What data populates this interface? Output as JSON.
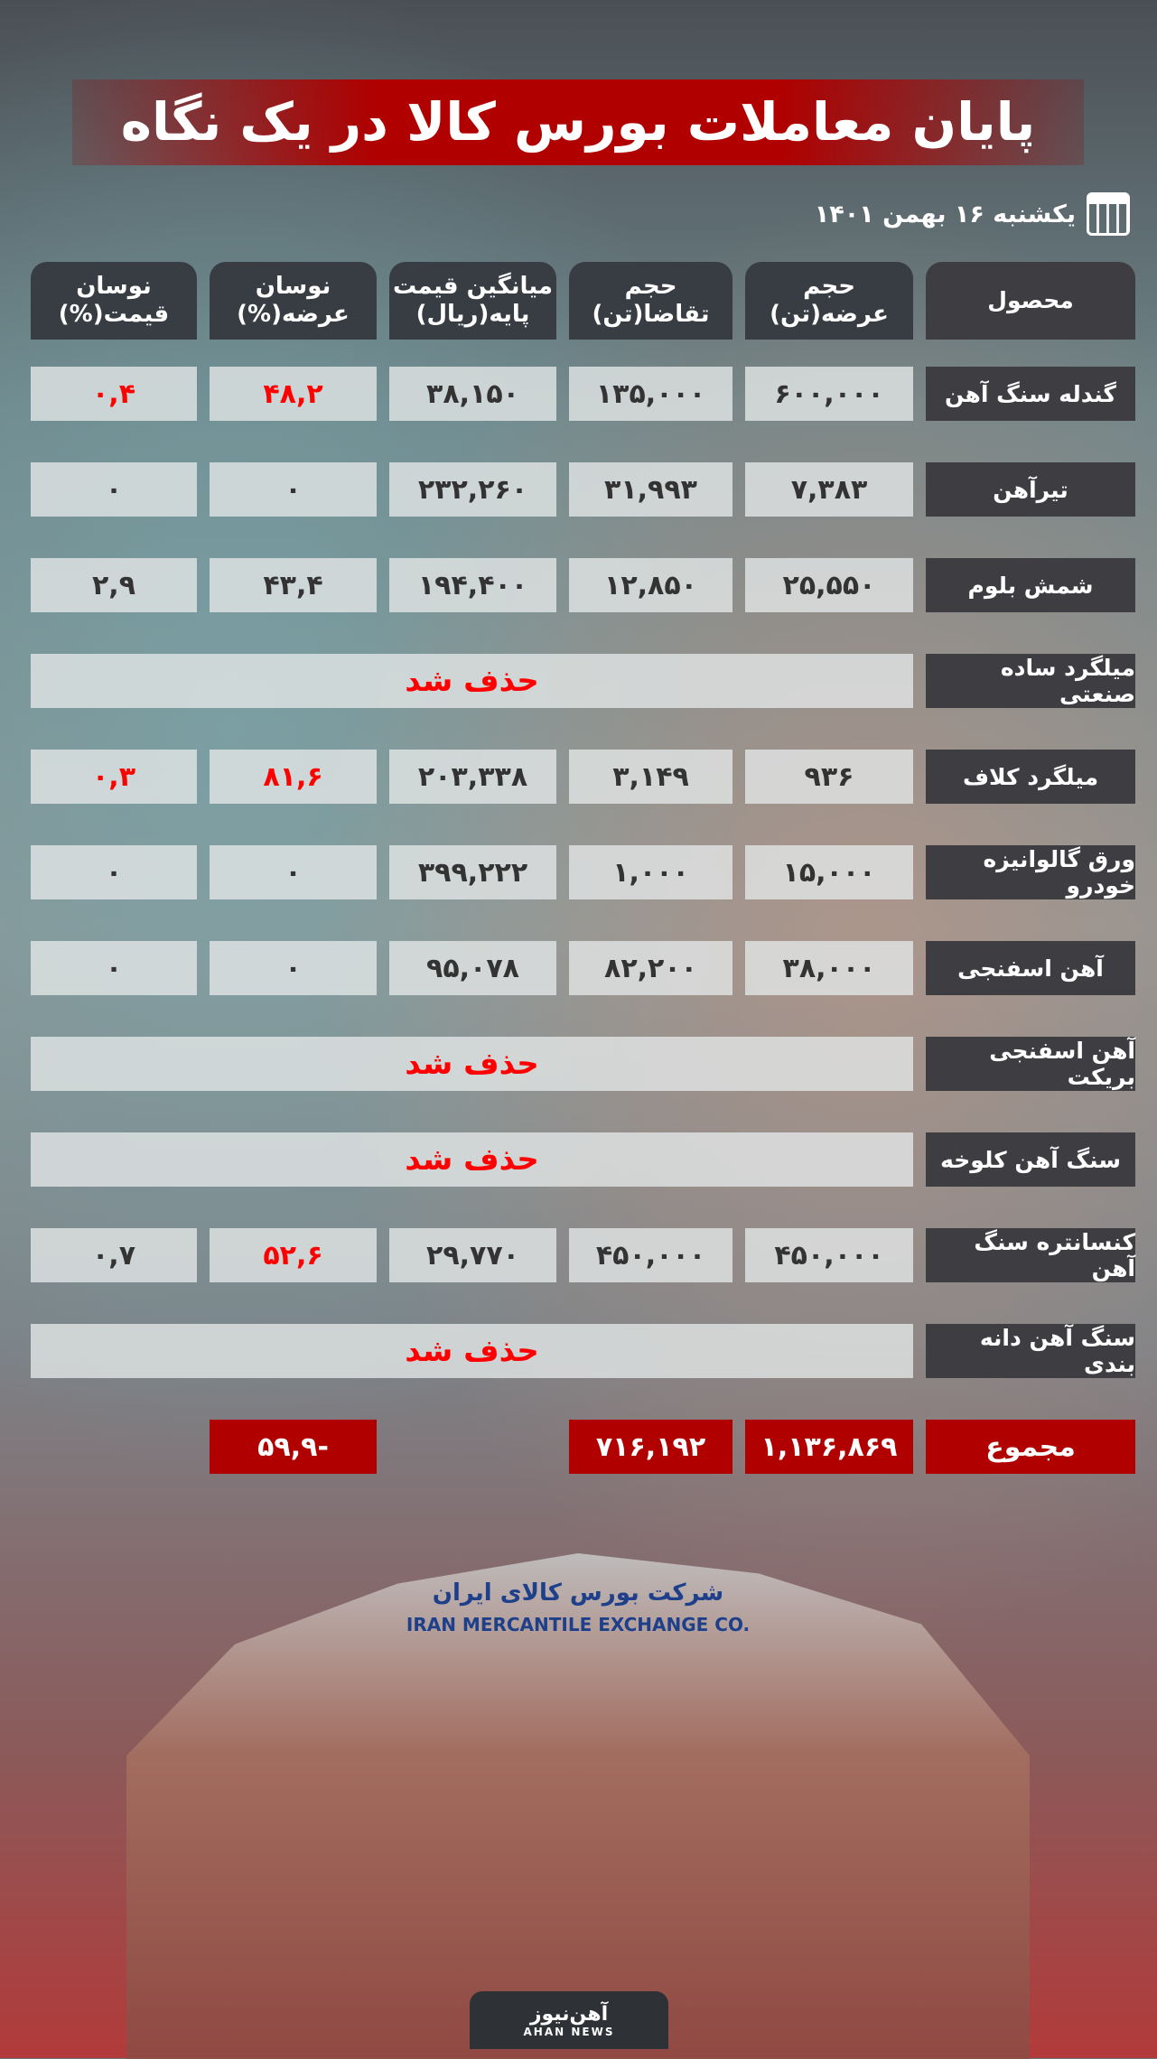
{
  "title": "پایان معاملات بورس کالا در یک نگاه",
  "date": "یکشنبه ۱۶ بهمن ۱۴۰۱",
  "headers": [
    "محصول",
    "حجم عرضه(تن)",
    "حجم تقاضا(تن)",
    "میانگین قیمت پایه(ریال)",
    "نوسان عرضه(%)",
    "نوسان قیمت(%)"
  ],
  "rows": [
    {
      "product": "گندله سنگ آهن",
      "supply": "۶۰۰,۰۰۰",
      "demand": "۱۳۵,۰۰۰",
      "price": "۳۸,۱۵۰",
      "supply_change": "۴۸,۲",
      "price_change": "۰,۴",
      "red": true
    },
    {
      "product": "تیرآهن",
      "supply": "۷,۳۸۳",
      "demand": "۳۱,۹۹۳",
      "price": "۲۳۲,۲۶۰",
      "supply_change": "۰",
      "price_change": "۰"
    },
    {
      "product": "شمش بلوم",
      "supply": "۲۵,۵۵۰",
      "demand": "۱۲,۸۵۰",
      "price": "۱۹۴,۴۰۰",
      "supply_change": "۴۳,۴",
      "price_change": "۲,۹"
    },
    {
      "product": "میلگرد ساده صنعتی",
      "deleted": "حذف شد"
    },
    {
      "product": "میلگرد کلاف",
      "supply": "۹۳۶",
      "demand": "۳,۱۴۹",
      "price": "۲۰۳,۳۳۸",
      "supply_change": "۸۱,۶",
      "price_change": "۰,۳",
      "red": true
    },
    {
      "product": "ورق گالوانیزه خودرو",
      "supply": "۱۵,۰۰۰",
      "demand": "۱,۰۰۰",
      "price": "۳۹۹,۲۲۲",
      "supply_change": "۰",
      "price_change": "۰"
    },
    {
      "product": "آهن اسفنجی",
      "supply": "۳۸,۰۰۰",
      "demand": "۸۲,۲۰۰",
      "price": "۹۵,۰۷۸",
      "supply_change": "۰",
      "price_change": "۰"
    },
    {
      "product": "آهن اسفنجی بریکت",
      "deleted": "حذف شد"
    },
    {
      "product": "سنگ آهن کلوخه",
      "deleted": "حذف شد"
    },
    {
      "product": "کنسانتره سنگ آهن",
      "supply": "۴۵۰,۰۰۰",
      "demand": "۴۵۰,۰۰۰",
      "price": "۲۹,۷۷۰",
      "supply_change": "۵۲,۶",
      "price_change": "۰,۷",
      "red_supply_only": true
    },
    {
      "product": "سنگ آهن دانه بندی",
      "deleted": "حذف شد"
    }
  ],
  "total": {
    "label": "مجموع",
    "supply": "۱,۱۳۶,۸۶۹",
    "demand": "۷۱۶,۱۹۲",
    "supply_change": "-۵۹,۹"
  },
  "building_sign": {
    "fa": "شرکت بورس کالای ایران",
    "en": "IRAN MERCANTILE EXCHANGE CO."
  },
  "logo": {
    "fa": "آهن‌نیوز",
    "en": "AHAN NEWS"
  },
  "colors": {
    "accent": "#b00000",
    "deleted": "#ff0000",
    "product_cell": "#3d3d42"
  }
}
